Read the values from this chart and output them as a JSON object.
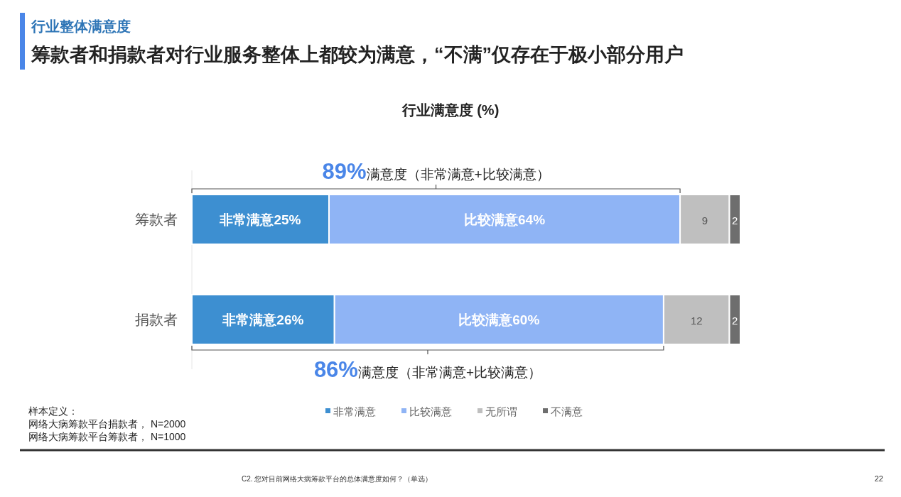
{
  "chart_data": {
    "type": "bar",
    "orientation": "horizontal",
    "stacked": true,
    "title": "行业满意度 (%)",
    "categories": [
      "筹款者",
      "捐款者"
    ],
    "series": [
      {
        "name": "非常满意",
        "color": "#3d8fd1",
        "values": [
          25,
          26
        ],
        "value_labels": [
          "非常满意25%",
          "非常满意26%"
        ]
      },
      {
        "name": "比较满意",
        "color": "#8fb4f5",
        "values": [
          64,
          60
        ],
        "value_labels": [
          "比较满意64%",
          "比较满意60%"
        ]
      },
      {
        "name": "无所谓",
        "color": "#bfbfbf",
        "values": [
          9,
          12
        ],
        "value_labels": [
          "9",
          "12"
        ]
      },
      {
        "name": "不满意",
        "color": "#6e6e6e",
        "values": [
          2,
          2
        ],
        "value_labels": [
          "2",
          "2"
        ]
      }
    ],
    "legend": "bottom",
    "grid": false,
    "annotations": [
      "行业整体满意度",
      "筹款者和捐款者对行业服务整体上都较为满意，“不满”仅存在于极小部分用户",
      "89%满意度（非常满意+比较满意）",
      "86%满意度（非常满意+比较满意）",
      "样本定义：",
      "网络大病筹款平台捐款者， N=2000",
      "网络大病筹款平台筹款者， N=1000",
      "C2. 您对目前网络大病筹款平台的总体满意度如何？（单选）",
      "22"
    ]
  }
}
